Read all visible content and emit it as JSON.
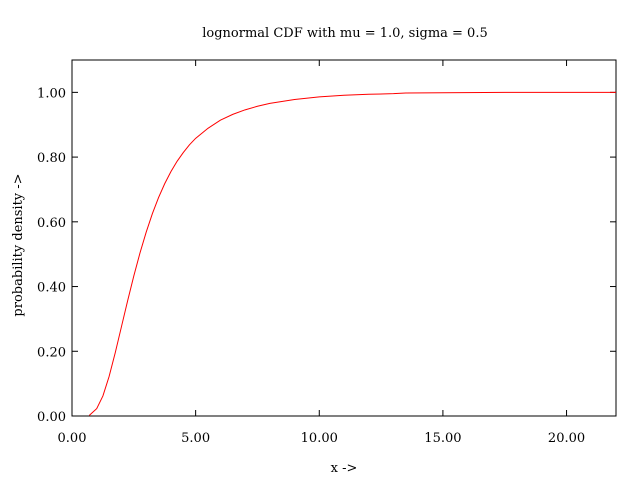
{
  "chart_data": {
    "type": "line",
    "title": "lognormal CDF with mu = 1.0, sigma = 0.5",
    "xlabel": "x ->",
    "ylabel": "probability density ->",
    "xlim": [
      0,
      22
    ],
    "ylim": [
      0,
      1.1
    ],
    "x_ticks": [
      "0.00",
      "5.00",
      "10.00",
      "15.00",
      "20.00"
    ],
    "y_ticks": [
      "0.00",
      "0.20",
      "0.40",
      "0.60",
      "0.80",
      "1.00"
    ],
    "grid": false,
    "legend": "none",
    "series": [
      {
        "color": "#ff0000",
        "x": [
          0.7,
          1.0,
          1.25,
          1.5,
          1.75,
          2.0,
          2.25,
          2.5,
          2.75,
          3.0,
          3.25,
          3.5,
          3.75,
          4.0,
          4.25,
          4.5,
          4.75,
          5.0,
          5.5,
          6.0,
          6.5,
          7.0,
          7.5,
          8.0,
          9.0,
          10.0,
          11.0,
          12.0,
          13.0,
          13.5,
          15.0,
          17.5,
          20.0,
          22.0
        ],
        "y": [
          0.002,
          0.023,
          0.062,
          0.122,
          0.196,
          0.276,
          0.356,
          0.433,
          0.504,
          0.568,
          0.625,
          0.675,
          0.718,
          0.755,
          0.787,
          0.814,
          0.838,
          0.858,
          0.889,
          0.914,
          0.932,
          0.946,
          0.957,
          0.966,
          0.978,
          0.986,
          0.991,
          0.994,
          0.996,
          0.998,
          0.999,
          1.0,
          1.0,
          1.0
        ]
      }
    ]
  }
}
